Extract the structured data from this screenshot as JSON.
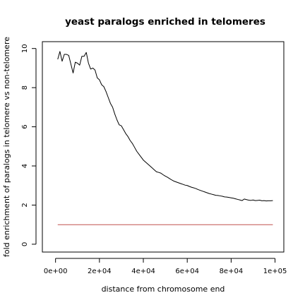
{
  "chart_data": {
    "type": "line",
    "title": "yeast paralogs enriched in telomeres",
    "xlabel": "distance from chromosome end",
    "ylabel": "fold enrichment of paralogs in telomere vs non-telomere",
    "xlim": [
      -6000,
      104000
    ],
    "ylim": [
      -0.4,
      10.35
    ],
    "x_ticks": [
      0,
      20000,
      40000,
      60000,
      80000,
      100000
    ],
    "x_tick_labels": [
      "0e+00",
      "2e+04",
      "4e+04",
      "6e+04",
      "8e+04",
      "1e+05"
    ],
    "y_ticks": [
      0,
      2,
      4,
      6,
      8,
      10
    ],
    "y_tick_labels": [
      "0",
      "2",
      "4",
      "6",
      "8",
      "10"
    ],
    "grid": false,
    "legend": "none",
    "series": [
      {
        "color": "#000000",
        "x": [
          1000,
          2000,
          3000,
          4000,
          5000,
          6000,
          7000,
          8000,
          9000,
          10000,
          11000,
          12000,
          13000,
          14000,
          15000,
          16000,
          17000,
          18000,
          19000,
          20000,
          21000,
          22000,
          23000,
          24000,
          25000,
          26000,
          27000,
          28000,
          29000,
          30000,
          31000,
          32000,
          33000,
          34000,
          35000,
          36000,
          37000,
          38000,
          39000,
          40000,
          41000,
          42000,
          43000,
          44000,
          45000,
          46000,
          47000,
          48000,
          49000,
          50000,
          51000,
          52000,
          53000,
          54000,
          55000,
          56000,
          57000,
          58000,
          59000,
          60000,
          61000,
          62000,
          63000,
          64000,
          65000,
          66000,
          67000,
          68000,
          69000,
          70000,
          71000,
          72000,
          73000,
          74000,
          75000,
          76000,
          77000,
          78000,
          79000,
          80000,
          81000,
          82000,
          83000,
          84000,
          85000,
          86000,
          87000,
          88000,
          89000,
          90000,
          91000,
          92000,
          93000,
          94000,
          95000,
          96000,
          97000,
          98000,
          99000
        ],
        "values": [
          9.45,
          9.85,
          9.35,
          9.7,
          9.7,
          9.65,
          9.2,
          8.75,
          9.3,
          9.25,
          9.15,
          9.6,
          9.6,
          9.8,
          9.25,
          8.95,
          9.0,
          8.9,
          8.5,
          8.4,
          8.15,
          8.05,
          7.8,
          7.5,
          7.2,
          7.0,
          6.65,
          6.35,
          6.1,
          6.05,
          5.85,
          5.65,
          5.5,
          5.3,
          5.15,
          4.95,
          4.75,
          4.6,
          4.45,
          4.3,
          4.2,
          4.1,
          4.0,
          3.9,
          3.8,
          3.7,
          3.67,
          3.63,
          3.55,
          3.48,
          3.42,
          3.35,
          3.28,
          3.22,
          3.18,
          3.14,
          3.1,
          3.06,
          3.02,
          3.0,
          2.95,
          2.91,
          2.88,
          2.84,
          2.79,
          2.75,
          2.71,
          2.67,
          2.63,
          2.59,
          2.56,
          2.53,
          2.5,
          2.49,
          2.47,
          2.45,
          2.42,
          2.41,
          2.39,
          2.37,
          2.35,
          2.32,
          2.29,
          2.26,
          2.23,
          2.31,
          2.28,
          2.25,
          2.24,
          2.26,
          2.23,
          2.24,
          2.25,
          2.22,
          2.23,
          2.21,
          2.22,
          2.22,
          2.23
        ]
      },
      {
        "color": "#c0504d",
        "x": [
          1000,
          99000
        ],
        "values": [
          1.0,
          1.0
        ]
      }
    ]
  }
}
